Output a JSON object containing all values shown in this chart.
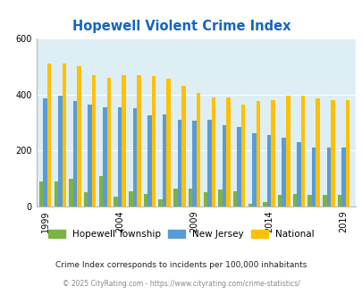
{
  "title": "Hopewell Violent Crime Index",
  "years": [
    1999,
    2000,
    2001,
    2002,
    2003,
    2004,
    2005,
    2006,
    2007,
    2008,
    2009,
    2010,
    2011,
    2012,
    2013,
    2014,
    2015,
    2016,
    2017,
    2018,
    2019
  ],
  "hopewell": [
    90,
    90,
    100,
    50,
    110,
    35,
    55,
    45,
    25,
    65,
    65,
    50,
    60,
    55,
    10,
    15,
    40,
    45,
    40,
    40,
    40
  ],
  "new_jersey": [
    385,
    395,
    375,
    365,
    355,
    355,
    350,
    325,
    330,
    310,
    305,
    310,
    290,
    285,
    260,
    255,
    245,
    230,
    210,
    210,
    210
  ],
  "national": [
    510,
    510,
    500,
    470,
    460,
    470,
    470,
    465,
    455,
    430,
    405,
    390,
    390,
    365,
    375,
    380,
    395,
    395,
    385,
    380,
    380
  ],
  "hopewell_color": "#7cb342",
  "nj_color": "#5b9bd5",
  "national_color": "#ffc000",
  "bg_color": "#ddeef5",
  "title_color": "#1565c0",
  "ylim": [
    0,
    600
  ],
  "yticks": [
    0,
    200,
    400,
    600
  ],
  "tick_years": [
    1999,
    2004,
    2009,
    2014,
    2019
  ],
  "footnote1": "Crime Index corresponds to incidents per 100,000 inhabitants",
  "footnote2": "© 2025 CityRating.com - https://www.cityrating.com/crime-statistics/",
  "legend_labels": [
    "Hopewell Township",
    "New Jersey",
    "National"
  ]
}
